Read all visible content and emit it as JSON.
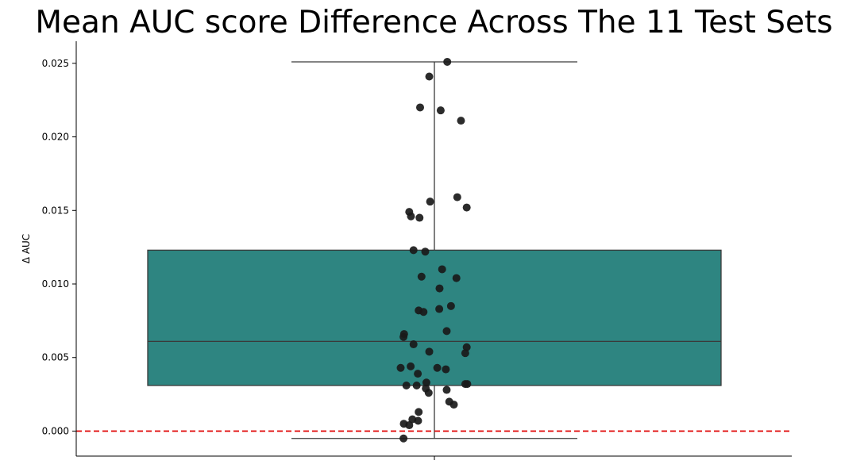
{
  "chart_data": {
    "type": "box",
    "title": "Mean AUC score Difference Across The 11 Test Sets",
    "ylabel": "Δ AUC",
    "xlabel": "",
    "ylim": [
      -0.0017,
      0.0265
    ],
    "yticks": [
      0.0,
      0.005,
      0.01,
      0.015,
      0.02,
      0.025
    ],
    "ytick_labels": [
      "0.000",
      "0.005",
      "0.010",
      "0.015",
      "0.020",
      "0.025"
    ],
    "grid": false,
    "box": {
      "whisker_low": -0.0005,
      "q1": 0.0031,
      "median": 0.0061,
      "q3": 0.0123,
      "whisker_high": 0.0251,
      "color": "#2e8581"
    },
    "reference_line": {
      "y": 0.0,
      "color": "#e00000",
      "style": "dashed"
    },
    "points_color": "#1a1a1a",
    "points": [
      {
        "jitter": 0.045,
        "y": 0.0251
      },
      {
        "jitter": -0.018,
        "y": 0.0241
      },
      {
        "jitter": -0.05,
        "y": 0.022
      },
      {
        "jitter": 0.022,
        "y": 0.0218
      },
      {
        "jitter": 0.093,
        "y": 0.0211
      },
      {
        "jitter": 0.08,
        "y": 0.0159
      },
      {
        "jitter": -0.015,
        "y": 0.0156
      },
      {
        "jitter": 0.113,
        "y": 0.0152
      },
      {
        "jitter": -0.088,
        "y": 0.0149
      },
      {
        "jitter": -0.082,
        "y": 0.0146
      },
      {
        "jitter": -0.052,
        "y": 0.0145
      },
      {
        "jitter": -0.073,
        "y": 0.0123
      },
      {
        "jitter": -0.032,
        "y": 0.0122
      },
      {
        "jitter": 0.027,
        "y": 0.011
      },
      {
        "jitter": -0.045,
        "y": 0.0105
      },
      {
        "jitter": 0.077,
        "y": 0.0104
      },
      {
        "jitter": 0.018,
        "y": 0.0097
      },
      {
        "jitter": 0.058,
        "y": 0.0085
      },
      {
        "jitter": 0.017,
        "y": 0.0083
      },
      {
        "jitter": -0.055,
        "y": 0.0082
      },
      {
        "jitter": -0.038,
        "y": 0.0081
      },
      {
        "jitter": 0.043,
        "y": 0.0068
      },
      {
        "jitter": -0.106,
        "y": 0.0066
      },
      {
        "jitter": -0.108,
        "y": 0.0064
      },
      {
        "jitter": -0.073,
        "y": 0.0059
      },
      {
        "jitter": 0.113,
        "y": 0.0057
      },
      {
        "jitter": -0.018,
        "y": 0.0054
      },
      {
        "jitter": 0.108,
        "y": 0.0053
      },
      {
        "jitter": -0.083,
        "y": 0.0044
      },
      {
        "jitter": -0.118,
        "y": 0.0043
      },
      {
        "jitter": 0.01,
        "y": 0.0043
      },
      {
        "jitter": 0.04,
        "y": 0.0042
      },
      {
        "jitter": -0.058,
        "y": 0.0039
      },
      {
        "jitter": -0.028,
        "y": 0.0033
      },
      {
        "jitter": -0.098,
        "y": 0.0031
      },
      {
        "jitter": -0.062,
        "y": 0.0031
      },
      {
        "jitter": 0.108,
        "y": 0.0032
      },
      {
        "jitter": 0.115,
        "y": 0.0032
      },
      {
        "jitter": -0.03,
        "y": 0.0029
      },
      {
        "jitter": 0.043,
        "y": 0.0028
      },
      {
        "jitter": -0.02,
        "y": 0.0026
      },
      {
        "jitter": 0.052,
        "y": 0.002
      },
      {
        "jitter": 0.068,
        "y": 0.0018
      },
      {
        "jitter": -0.055,
        "y": 0.0013
      },
      {
        "jitter": -0.077,
        "y": 0.0008
      },
      {
        "jitter": -0.057,
        "y": 0.0007
      },
      {
        "jitter": -0.107,
        "y": 0.0005
      },
      {
        "jitter": -0.088,
        "y": 0.0004
      },
      {
        "jitter": -0.108,
        "y": -0.0005
      }
    ]
  }
}
